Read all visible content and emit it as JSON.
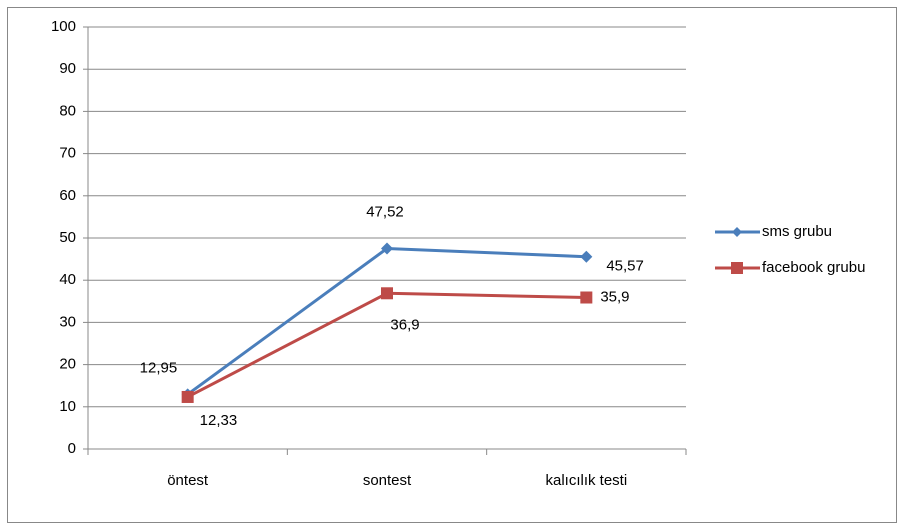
{
  "chart_data": {
    "type": "line",
    "categories": [
      "öntest",
      "sontest",
      "kalıcılık testi"
    ],
    "series": [
      {
        "name": "sms grubu",
        "color": "#4a7ebb",
        "marker": "diamond",
        "values": [
          12.95,
          47.52,
          45.57
        ],
        "value_labels": [
          "12,95",
          "47,52",
          "45,57"
        ]
      },
      {
        "name": "facebook grubu",
        "color": "#be4b48",
        "marker": "square",
        "values": [
          12.33,
          36.9,
          35.9
        ],
        "value_labels": [
          "12,33",
          "36,9",
          "35,9"
        ]
      }
    ],
    "ylim": [
      0,
      100
    ],
    "yticks": [
      0,
      10,
      20,
      30,
      40,
      50,
      60,
      70,
      80,
      90,
      100
    ],
    "grid": true,
    "legend": "right"
  }
}
